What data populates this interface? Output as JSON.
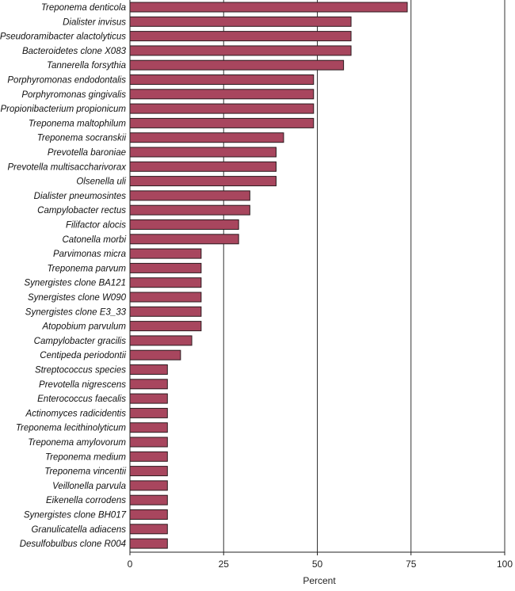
{
  "chart_data": {
    "type": "bar",
    "orientation": "horizontal",
    "title": "",
    "xlabel": "Percent",
    "ylabel": "",
    "xlim": [
      0,
      100
    ],
    "xticks": [
      0,
      25,
      50,
      75,
      100
    ],
    "grid": "vertical lines at 25, 50, 75, 100",
    "bar_color": "#a8465e",
    "bar_edge_color": "#2b1a1e",
    "categories": [
      "Treponema denticola",
      "Dialister invisus",
      "Pseudoramibacter alactolyticus",
      "Bacteroidetes clone X083",
      "Tannerella forsythia",
      "Porphyromonas endodontalis",
      "Porphyromonas gingivalis",
      "Propionibacterium propionicum",
      "Treponema maltophilum",
      "Treponema socranskii",
      "Prevotella baroniae",
      "Prevotella multisaccharivorax",
      "Olsenella uli",
      "Dialister pneumosintes",
      "Campylobacter rectus",
      "Filifactor alocis",
      "Catonella morbi",
      "Parvimonas micra",
      "Treponema parvum",
      "Synergistes clone BA121",
      "Synergistes clone W090",
      "Synergistes clone E3_33",
      "Atopobium parvulum",
      "Campylobacter gracilis",
      "Centipeda periodontii",
      "Streptococcus species",
      "Prevotella nigrescens",
      "Enterococcus faecalis",
      "Actinomyces radicidentis",
      "Treponema lecithinolyticum",
      "Treponema amylovorum",
      "Treponema medium",
      "Treponema vincentii",
      "Veillonella parvula",
      "Eikenella corrodens",
      "Synergistes clone BH017",
      "Granulicatella adiacens",
      "Desulfobulbus clone R004"
    ],
    "values": [
      74,
      59,
      59,
      59,
      57,
      49,
      49,
      49,
      49,
      41,
      39,
      39,
      39,
      32,
      32,
      29,
      29,
      19,
      19,
      19,
      19,
      19,
      19,
      16.5,
      13.5,
      10,
      10,
      10,
      10,
      10,
      10,
      10,
      10,
      10,
      10,
      10,
      10,
      10
    ]
  }
}
